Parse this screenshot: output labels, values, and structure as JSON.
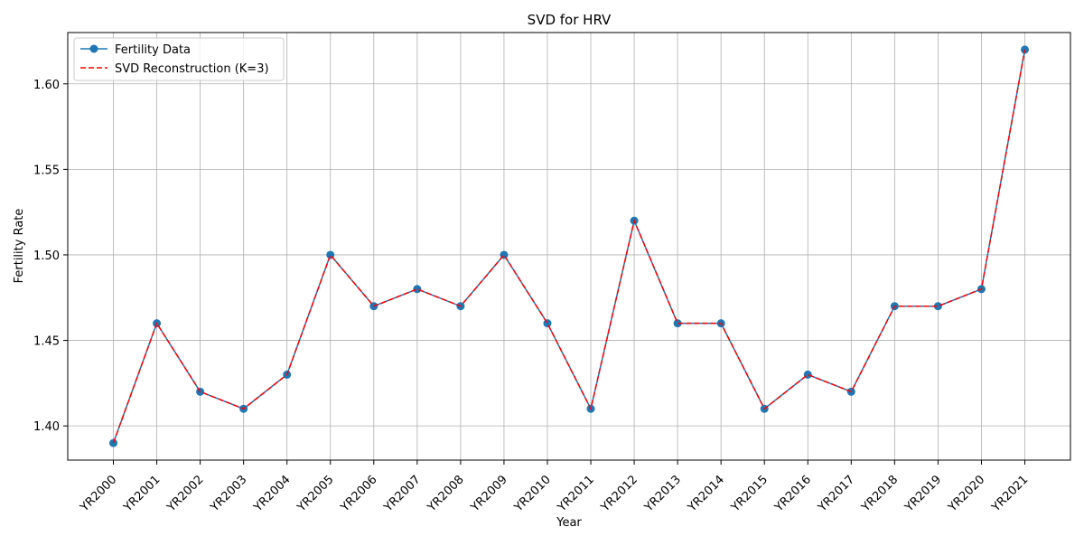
{
  "chart_data": {
    "type": "line",
    "title": "SVD for HRV",
    "xlabel": "Year",
    "ylabel": "Fertility Rate",
    "categories": [
      "YR2000",
      "YR2001",
      "YR2002",
      "YR2003",
      "YR2004",
      "YR2005",
      "YR2006",
      "YR2007",
      "YR2008",
      "YR2009",
      "YR2010",
      "YR2011",
      "YR2012",
      "YR2013",
      "YR2014",
      "YR2015",
      "YR2016",
      "YR2017",
      "YR2018",
      "YR2019",
      "YR2020",
      "YR2021"
    ],
    "ylim": [
      1.38,
      1.63
    ],
    "yticks": [
      1.4,
      1.45,
      1.5,
      1.55,
      1.6
    ],
    "ytick_labels": [
      "1.40",
      "1.45",
      "1.50",
      "1.55",
      "1.60"
    ],
    "grid": true,
    "legend_position": "upper-left",
    "series": [
      {
        "name": "Fertility Data",
        "style": "solid-with-circle-markers",
        "color": "#1f77b4",
        "values": [
          1.39,
          1.46,
          1.42,
          1.41,
          1.43,
          1.5,
          1.47,
          1.48,
          1.47,
          1.5,
          1.46,
          1.41,
          1.52,
          1.46,
          1.46,
          1.41,
          1.43,
          1.42,
          1.47,
          1.47,
          1.48,
          1.62
        ]
      },
      {
        "name": "SVD Reconstruction (K=3)",
        "style": "dashed",
        "color": "#ff0000",
        "values": [
          1.39,
          1.46,
          1.42,
          1.41,
          1.43,
          1.5,
          1.47,
          1.48,
          1.47,
          1.5,
          1.46,
          1.41,
          1.52,
          1.46,
          1.46,
          1.41,
          1.43,
          1.42,
          1.47,
          1.47,
          1.48,
          1.62
        ]
      }
    ]
  }
}
